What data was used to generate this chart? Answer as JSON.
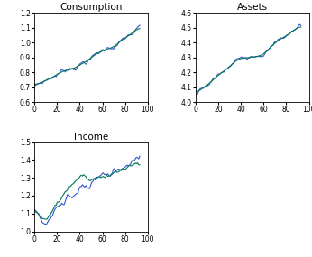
{
  "consumption_ylim": [
    0.6,
    1.2
  ],
  "consumption_yticks": [
    0.6,
    0.7,
    0.8,
    0.9,
    1.0,
    1.1,
    1.2
  ],
  "assets_ylim": [
    4.0,
    4.6
  ],
  "assets_yticks": [
    4.0,
    4.1,
    4.2,
    4.3,
    4.4,
    4.5,
    4.6
  ],
  "income_ylim": [
    1.0,
    1.5
  ],
  "income_yticks": [
    1.0,
    1.1,
    1.2,
    1.3,
    1.4,
    1.5
  ],
  "xlim": [
    0,
    100
  ],
  "xticks": [
    0,
    20,
    40,
    60,
    80,
    100
  ],
  "n_points": 93,
  "titles": [
    "Consumption",
    "Assets",
    "Income"
  ],
  "data_color": "#3355cc",
  "trend_color": "#007755",
  "linewidth": 0.8,
  "background_color": "#ffffff",
  "figsize": [
    3.46,
    2.85
  ],
  "dpi": 100
}
